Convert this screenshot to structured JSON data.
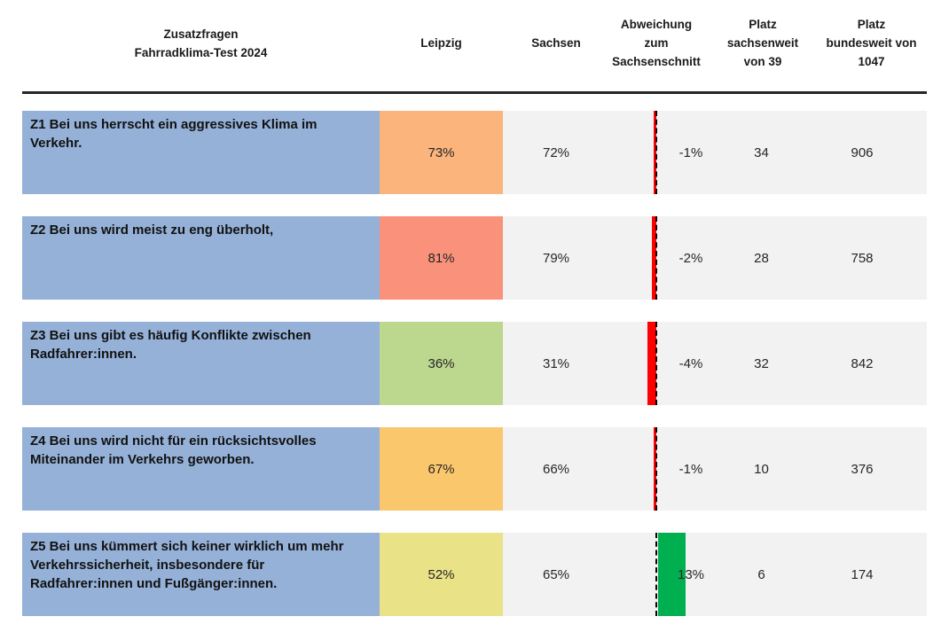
{
  "header": {
    "question": "Zusatzfragen\nFahrradklima-Test 2024",
    "leipzig": "Leipzig",
    "sachsen": "Sachsen",
    "deviation": "Abweichung\nzum\nSachsenschnitt",
    "platz_sachsenweit": "Platz\nsachsenweit\nvon 39",
    "platz_bundesweit": "Platz\nbundesweit von\n1047"
  },
  "colors": {
    "question_bg": "#95B1D8",
    "band_bg": "#F2F2F2",
    "negative_bar": "#FF0000",
    "positive_bar": "#00B050",
    "rule": "#262626"
  },
  "chart_data": {
    "type": "table",
    "title": "Zusatzfragen Fahrradklima-Test 2024",
    "columns": [
      "Zusatzfragen Fahrradklima-Test 2024",
      "Leipzig",
      "Sachsen",
      "Abweichung zum Sachsenschnitt",
      "Platz sachsenweit von 39",
      "Platz bundesweit von 1047"
    ],
    "rows": [
      {
        "question": "Z1 Bei uns herrscht ein aggressives Klima im Verkehr.",
        "leipzig": "73%",
        "leipzig_color": "#FAB47C",
        "sachsen": "72%",
        "deviation": "-1%",
        "deviation_value": -1,
        "platz_sachsenweit": "34",
        "platz_bundesweit": "906"
      },
      {
        "question": "Z2 Bei uns wird meist zu eng überholt,",
        "leipzig": "81%",
        "leipzig_color": "#F9917B",
        "sachsen": "79%",
        "deviation": "-2%",
        "deviation_value": -2,
        "platz_sachsenweit": "28",
        "platz_bundesweit": "758"
      },
      {
        "question": "Z3 Bei uns gibt es häufig Konflikte zwischen Radfahrer:innen.",
        "leipzig": "36%",
        "leipzig_color": "#BCD78E",
        "sachsen": "31%",
        "deviation": "-4%",
        "deviation_value": -4,
        "platz_sachsenweit": "32",
        "platz_bundesweit": "842"
      },
      {
        "question": "Z4 Bei uns wird nicht für ein rücksichtsvolles Miteinander im Verkehrs geworben.",
        "leipzig": "67%",
        "leipzig_color": "#FBC76C",
        "sachsen": "66%",
        "deviation": "-1%",
        "deviation_value": -1,
        "platz_sachsenweit": "10",
        "platz_bundesweit": "376"
      },
      {
        "question": "Z5 Bei uns kümmert sich keiner wirklich um mehr Verkehrssicherheit, insbesondere für Radfahrer:innen und Fußgänger:innen.",
        "leipzig": "52%",
        "leipzig_color": "#EAE287",
        "sachsen": "65%",
        "deviation": "13%",
        "deviation_value": 13,
        "platz_sachsenweit": "6",
        "platz_bundesweit": "174"
      }
    ]
  }
}
